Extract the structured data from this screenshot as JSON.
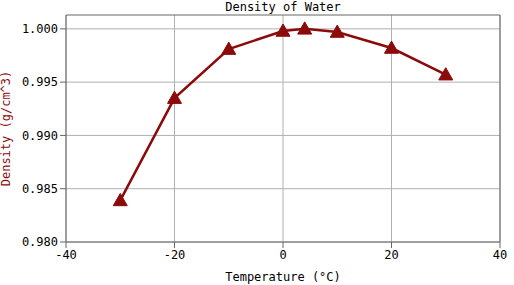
{
  "chart_data": {
    "type": "line",
    "title": "Density of Water",
    "x_label": "Temperature (°C)",
    "y_label": "Density (g/cm^3)",
    "x": [
      -30,
      -20,
      -10,
      0,
      4,
      10,
      20,
      30
    ],
    "values": [
      0.9839,
      0.9935,
      0.9981,
      0.9998,
      1.0,
      0.9997,
      0.9982,
      0.9957
    ],
    "color": "#8b0a0a",
    "marker": "triangle",
    "line_style": "solid",
    "xlim": [
      -40,
      40
    ],
    "xticks": [
      -40,
      -20,
      0,
      20,
      40
    ],
    "ylim": [
      0.98,
      1.0013
    ],
    "yticks": [
      {
        "value": 0.98,
        "label": "0.980"
      },
      0.985,
      {
        "value": 0.99,
        "label": "0.990"
      },
      0.995,
      {
        "value": 1.0,
        "label": "1.000"
      }
    ],
    "grid": true
  }
}
